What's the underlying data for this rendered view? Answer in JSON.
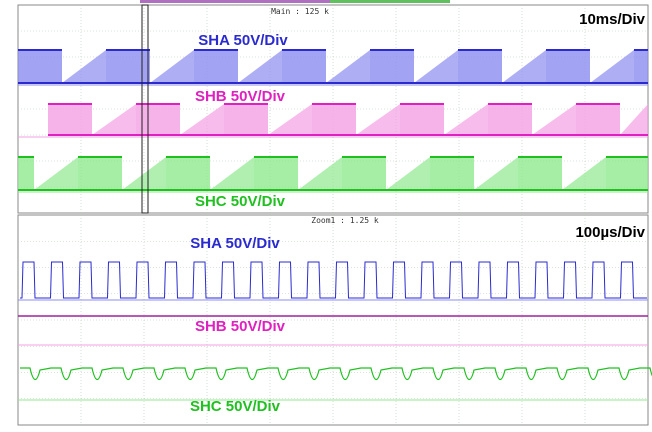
{
  "main_panel": {
    "header": "Main : 125 k",
    "timebase": "10ms/Div",
    "channels": [
      "SHA 50V/Div",
      "SHB 50V/Div",
      "SHC 50V/Div"
    ]
  },
  "zoom_panel": {
    "header": "Zoom1 : 1.25 k",
    "timebase": "100µs/Div",
    "channels": [
      "SHA 50V/Div",
      "SHB 50V/Div",
      "SHC 50V/Div"
    ]
  }
}
